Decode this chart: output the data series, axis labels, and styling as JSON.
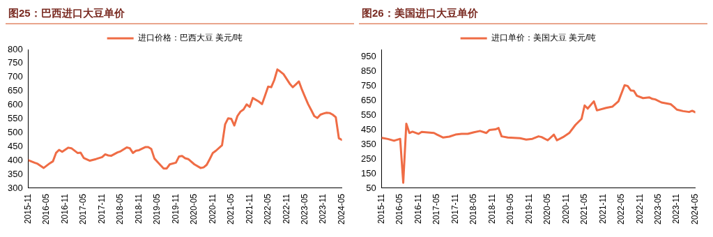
{
  "chart_data": [
    {
      "type": "line",
      "title": "图25：巴西进口大豆单价",
      "legend": "top",
      "grid": false,
      "marker": "none",
      "line_style": "solid",
      "x": [
        "2015-11",
        "2016-01",
        "2016-02",
        "2016-04",
        "2016-06",
        "2016-07",
        "2016-08",
        "2016-09",
        "2016-10",
        "2016-12",
        "2017-01",
        "2017-03",
        "2017-04",
        "2017-05",
        "2017-07",
        "2017-09",
        "2017-11",
        "2017-12",
        "2018-01",
        "2018-02",
        "2018-04",
        "2018-05",
        "2018-07",
        "2018-08",
        "2018-09",
        "2018-10",
        "2018-11",
        "2019-01",
        "2019-02",
        "2019-03",
        "2019-04",
        "2019-05",
        "2019-07",
        "2019-08",
        "2019-09",
        "2019-11",
        "2019-12",
        "2020-01",
        "2020-02",
        "2020-03",
        "2020-05",
        "2020-07",
        "2020-08",
        "2020-09",
        "2020-10",
        "2020-11",
        "2020-12",
        "2021-02",
        "2021-03",
        "2021-04",
        "2021-05",
        "2021-06",
        "2021-07",
        "2021-08",
        "2021-09",
        "2021-10",
        "2021-11",
        "2021-12",
        "2022-02",
        "2022-03",
        "2022-04",
        "2022-05",
        "2022-06",
        "2022-07",
        "2022-08",
        "2022-09",
        "2022-10",
        "2022-12",
        "2023-01",
        "2023-02",
        "2023-03",
        "2023-04",
        "2023-05",
        "2023-06",
        "2023-07",
        "2023-08",
        "2023-09",
        "2023-10",
        "2023-11",
        "2023-12",
        "2024-01",
        "2024-02",
        "2024-03",
        "2024-04",
        "2024-05"
      ],
      "series": [
        {
          "name": "进口价格：巴西大豆 美元/吨",
          "color": "#ef6c45",
          "values": [
            401,
            392,
            388,
            373,
            390,
            397,
            427,
            438,
            431,
            446,
            444,
            427,
            428,
            409,
            399,
            405,
            412,
            422,
            418,
            417,
            429,
            433,
            447,
            444,
            427,
            435,
            437,
            448,
            448,
            441,
            407,
            395,
            371,
            371,
            386,
            392,
            414,
            416,
            408,
            405,
            386,
            373,
            375,
            384,
            405,
            427,
            435,
            455,
            530,
            552,
            550,
            526,
            560,
            576,
            584,
            602,
            593,
            625,
            612,
            603,
            634,
            666,
            664,
            690,
            728,
            720,
            711,
            677,
            664,
            674,
            685,
            655,
            629,
            603,
            582,
            560,
            553,
            565,
            569,
            572,
            571,
            565,
            556,
            480,
            474
          ]
        }
      ],
      "xlim": [
        "2015-11",
        "2024-05"
      ],
      "xticks": [
        "2015-11",
        "2016-05",
        "2016-11",
        "2017-05",
        "2017-11",
        "2018-05",
        "2018-11",
        "2019-05",
        "2019-11",
        "2020-05",
        "2020-11",
        "2021-05",
        "2021-11",
        "2022-05",
        "2022-11",
        "2023-05",
        "2023-11",
        "2024-05"
      ],
      "ylim": [
        300,
        800
      ],
      "yticks": [
        300,
        350,
        400,
        450,
        500,
        550,
        600,
        650,
        700,
        750,
        800
      ]
    },
    {
      "type": "line",
      "title": "图26：美国进口大豆单价",
      "legend": "top",
      "grid": false,
      "marker": "none",
      "line_style": "solid",
      "x": [
        "2015-11",
        "2016-01",
        "2016-03",
        "2016-05",
        "2016-06",
        "2016-07",
        "2016-08",
        "2016-09",
        "2016-11",
        "2016-12",
        "2017-02",
        "2017-04",
        "2017-05",
        "2017-07",
        "2017-09",
        "2017-11",
        "2018-01",
        "2018-03",
        "2018-05",
        "2018-07",
        "2018-09",
        "2018-10",
        "2018-12",
        "2019-01",
        "2019-02",
        "2019-04",
        "2019-06",
        "2019-08",
        "2019-10",
        "2019-12",
        "2020-02",
        "2020-03",
        "2020-05",
        "2020-07",
        "2020-08",
        "2020-10",
        "2020-12",
        "2021-02",
        "2021-04",
        "2021-05",
        "2021-06",
        "2021-08",
        "2021-09",
        "2021-12",
        "2022-02",
        "2022-04",
        "2022-06",
        "2022-07",
        "2022-08",
        "2022-09",
        "2022-10",
        "2022-12",
        "2023-02",
        "2023-03",
        "2023-04",
        "2023-06",
        "2023-09",
        "2023-10",
        "2023-11",
        "2024-01",
        "2024-03",
        "2024-04",
        "2024-05"
      ],
      "series": [
        {
          "name": "进口单价：美国大豆 美元/吨",
          "color": "#ef6c45",
          "values": [
            395,
            387,
            375,
            388,
            87,
            492,
            428,
            437,
            422,
            435,
            432,
            428,
            417,
            397,
            403,
            417,
            422,
            422,
            433,
            442,
            428,
            448,
            453,
            462,
            405,
            397,
            395,
            392,
            383,
            388,
            405,
            400,
            378,
            417,
            378,
            400,
            428,
            483,
            525,
            617,
            595,
            645,
            583,
            600,
            608,
            645,
            755,
            750,
            720,
            717,
            683,
            667,
            672,
            662,
            658,
            637,
            625,
            608,
            588,
            578,
            572,
            580,
            570
          ]
        }
      ],
      "xlim": [
        "2015-11",
        "2024-05"
      ],
      "xticks": [
        "2015-11",
        "2016-05",
        "2016-11",
        "2017-05",
        "2017-11",
        "2018-05",
        "2018-11",
        "2019-05",
        "2019-11",
        "2020-05",
        "2020-11",
        "2021-05",
        "2021-11",
        "2022-05",
        "2022-11",
        "2023-05",
        "2023-11",
        "2024-05"
      ],
      "ylim": [
        50,
        1000
      ],
      "yticks": [
        50,
        150,
        250,
        350,
        450,
        550,
        650,
        750,
        850,
        950
      ]
    }
  ]
}
